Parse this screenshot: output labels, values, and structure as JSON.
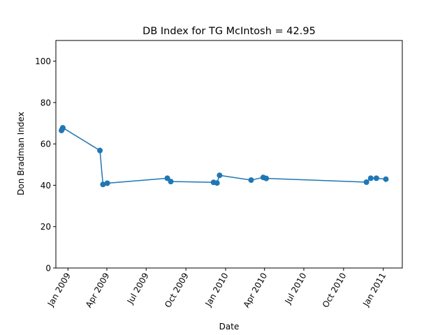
{
  "chart_data": {
    "type": "line",
    "title": "DB Index for TG McIntosh = 42.95",
    "xlabel": "Date",
    "ylabel": "Don Bradman Index",
    "ylim": [
      0,
      110
    ],
    "xlim": [
      "2008-12-04",
      "2011-02-14"
    ],
    "yticks": [
      0,
      20,
      40,
      60,
      80,
      100
    ],
    "xticks": [
      {
        "date": "2009-01-01",
        "label": "Jan 2009"
      },
      {
        "date": "2009-04-01",
        "label": "Apr 2009"
      },
      {
        "date": "2009-07-01",
        "label": "Jul 2009"
      },
      {
        "date": "2009-10-01",
        "label": "Oct 2009"
      },
      {
        "date": "2010-01-01",
        "label": "Jan 2010"
      },
      {
        "date": "2010-04-01",
        "label": "Apr 2010"
      },
      {
        "date": "2010-07-01",
        "label": "Jul 2010"
      },
      {
        "date": "2010-10-01",
        "label": "Oct 2010"
      },
      {
        "date": "2011-01-01",
        "label": "Jan 2011"
      }
    ],
    "grid": false,
    "series_color": "#1f77b4",
    "series": [
      {
        "points": [
          {
            "x": "2008-12-17",
            "y": 66.5
          },
          {
            "x": "2008-12-19",
            "y": 67.3
          },
          {
            "x": "2008-12-20",
            "y": 67.8
          },
          {
            "x": "2009-03-16",
            "y": 56.8
          },
          {
            "x": "2009-03-23",
            "y": 40.4
          },
          {
            "x": "2009-04-02",
            "y": 41.0
          },
          {
            "x": "2009-08-19",
            "y": 43.4
          },
          {
            "x": "2009-08-27",
            "y": 41.8
          },
          {
            "x": "2009-12-04",
            "y": 41.4
          },
          {
            "x": "2009-12-12",
            "y": 41.1
          },
          {
            "x": "2009-12-18",
            "y": 44.8
          },
          {
            "x": "2010-03-01",
            "y": 42.5
          },
          {
            "x": "2010-03-29",
            "y": 43.8
          },
          {
            "x": "2010-04-05",
            "y": 43.3
          },
          {
            "x": "2010-11-23",
            "y": 41.5
          },
          {
            "x": "2010-12-03",
            "y": 43.4
          },
          {
            "x": "2010-12-16",
            "y": 43.4
          },
          {
            "x": "2011-01-07",
            "y": 42.95
          }
        ]
      }
    ]
  }
}
